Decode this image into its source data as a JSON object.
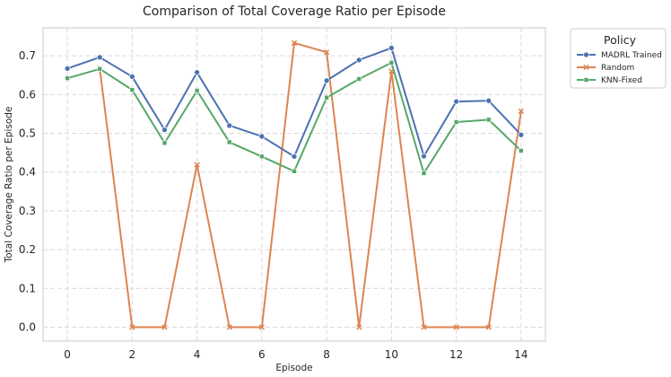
{
  "chart_data": {
    "type": "line",
    "title": "Comparison of Total Coverage Ratio per Episode",
    "xlabel": "Episode",
    "ylabel": "Total Coverage Ratio per Episode",
    "x": [
      0,
      1,
      2,
      3,
      4,
      5,
      6,
      7,
      8,
      9,
      10,
      11,
      12,
      13,
      14
    ],
    "xlim": [
      -0.75,
      14.75
    ],
    "ylim": [
      -0.036,
      0.772
    ],
    "xticks": [
      0,
      2,
      4,
      6,
      8,
      10,
      12,
      14
    ],
    "yticks": [
      0.0,
      0.1,
      0.2,
      0.3,
      0.4,
      0.5,
      0.6,
      0.7
    ],
    "grid": true,
    "legend_title": "Policy",
    "legend_position": "outside-top-right",
    "series": [
      {
        "name": "MADRL Trained",
        "color": "#4c72b0",
        "marker": "circle",
        "values": [
          0.667,
          0.696,
          0.646,
          0.509,
          0.657,
          0.52,
          0.492,
          0.44,
          0.636,
          0.689,
          0.72,
          0.441,
          0.582,
          0.584,
          0.496
        ]
      },
      {
        "name": "Random",
        "color": "#dd8452",
        "marker": "x",
        "values": [
          null,
          0.667,
          0.0,
          0.0,
          0.419,
          0.0,
          0.0,
          0.733,
          0.709,
          0.0,
          0.66,
          0.0,
          0.0,
          0.0,
          0.557
        ]
      },
      {
        "name": "KNN-Fixed",
        "color": "#55a868",
        "marker": "square",
        "values": [
          0.642,
          0.666,
          0.612,
          0.475,
          0.61,
          0.477,
          0.44,
          0.402,
          0.592,
          0.64,
          0.682,
          0.397,
          0.529,
          0.535,
          0.455
        ]
      }
    ]
  }
}
